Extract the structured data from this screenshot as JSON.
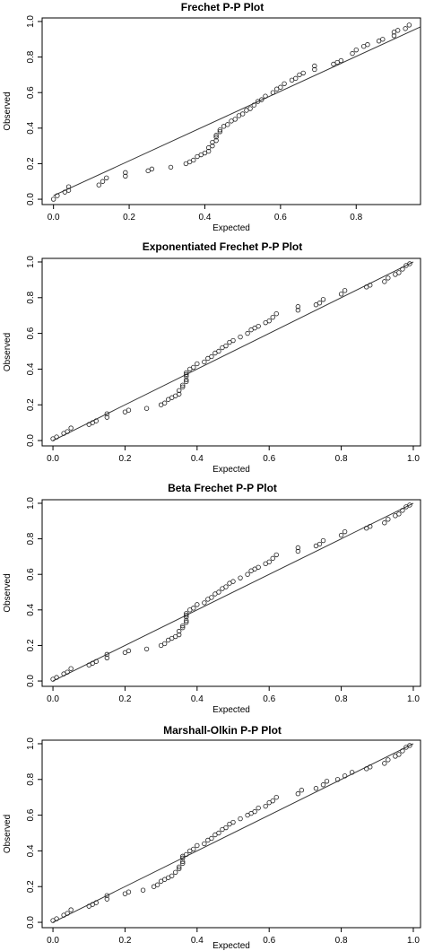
{
  "chart_data": [
    {
      "type": "scatter",
      "title": "Frechet P-P Plot",
      "xlabel": "Expected",
      "ylabel": "Observed",
      "xlim": [
        -0.03,
        0.97
      ],
      "ylim": [
        -0.03,
        1.02
      ],
      "x_ticks": [
        "0.0",
        "0.2",
        "0.4",
        "0.6",
        "0.8"
      ],
      "y_ticks": [
        "0.0",
        "0.2",
        "0.4",
        "0.6",
        "0.8",
        "1.0"
      ],
      "reference_line": {
        "from": [
          0,
          0.02
        ],
        "to": [
          0.97,
          0.97
        ]
      },
      "points": [
        [
          0.0,
          0.0
        ],
        [
          0.01,
          0.02
        ],
        [
          0.03,
          0.04
        ],
        [
          0.04,
          0.05
        ],
        [
          0.04,
          0.07
        ],
        [
          0.12,
          0.08
        ],
        [
          0.13,
          0.1
        ],
        [
          0.14,
          0.12
        ],
        [
          0.19,
          0.13
        ],
        [
          0.19,
          0.15
        ],
        [
          0.25,
          0.16
        ],
        [
          0.26,
          0.17
        ],
        [
          0.31,
          0.18
        ],
        [
          0.35,
          0.2
        ],
        [
          0.36,
          0.21
        ],
        [
          0.37,
          0.22
        ],
        [
          0.38,
          0.24
        ],
        [
          0.39,
          0.25
        ],
        [
          0.4,
          0.26
        ],
        [
          0.41,
          0.27
        ],
        [
          0.41,
          0.29
        ],
        [
          0.42,
          0.3
        ],
        [
          0.42,
          0.32
        ],
        [
          0.43,
          0.33
        ],
        [
          0.43,
          0.35
        ],
        [
          0.43,
          0.36
        ],
        [
          0.44,
          0.38
        ],
        [
          0.44,
          0.39
        ],
        [
          0.45,
          0.41
        ],
        [
          0.46,
          0.42
        ],
        [
          0.47,
          0.44
        ],
        [
          0.48,
          0.45
        ],
        [
          0.49,
          0.47
        ],
        [
          0.5,
          0.48
        ],
        [
          0.51,
          0.5
        ],
        [
          0.52,
          0.51
        ],
        [
          0.53,
          0.53
        ],
        [
          0.54,
          0.55
        ],
        [
          0.55,
          0.56
        ],
        [
          0.56,
          0.58
        ],
        [
          0.58,
          0.6
        ],
        [
          0.59,
          0.62
        ],
        [
          0.6,
          0.63
        ],
        [
          0.61,
          0.65
        ],
        [
          0.63,
          0.67
        ],
        [
          0.64,
          0.68
        ],
        [
          0.65,
          0.7
        ],
        [
          0.66,
          0.71
        ],
        [
          0.69,
          0.73
        ],
        [
          0.69,
          0.75
        ],
        [
          0.74,
          0.76
        ],
        [
          0.75,
          0.77
        ],
        [
          0.76,
          0.78
        ],
        [
          0.79,
          0.82
        ],
        [
          0.8,
          0.84
        ],
        [
          0.82,
          0.86
        ],
        [
          0.83,
          0.87
        ],
        [
          0.86,
          0.89
        ],
        [
          0.87,
          0.9
        ],
        [
          0.9,
          0.92
        ],
        [
          0.9,
          0.94
        ],
        [
          0.91,
          0.95
        ],
        [
          0.93,
          0.96
        ],
        [
          0.94,
          0.98
        ]
      ]
    },
    {
      "type": "scatter",
      "title": "Exponentiated Frechet P-P Plot",
      "xlabel": "Expected",
      "ylabel": "Observed",
      "xlim": [
        -0.03,
        1.02
      ],
      "ylim": [
        -0.03,
        1.02
      ],
      "x_ticks": [
        "0.0",
        "0.2",
        "0.4",
        "0.6",
        "0.8",
        "1.0"
      ],
      "y_ticks": [
        "0.0",
        "0.2",
        "0.4",
        "0.6",
        "0.8",
        "1.0"
      ],
      "reference_line": {
        "from": [
          0,
          0
        ],
        "to": [
          1,
          1
        ]
      },
      "points": [
        [
          0.0,
          0.01
        ],
        [
          0.01,
          0.02
        ],
        [
          0.03,
          0.04
        ],
        [
          0.04,
          0.05
        ],
        [
          0.05,
          0.07
        ],
        [
          0.1,
          0.09
        ],
        [
          0.11,
          0.1
        ],
        [
          0.12,
          0.11
        ],
        [
          0.15,
          0.13
        ],
        [
          0.15,
          0.15
        ],
        [
          0.2,
          0.16
        ],
        [
          0.21,
          0.17
        ],
        [
          0.26,
          0.18
        ],
        [
          0.3,
          0.2
        ],
        [
          0.31,
          0.21
        ],
        [
          0.32,
          0.23
        ],
        [
          0.33,
          0.24
        ],
        [
          0.34,
          0.25
        ],
        [
          0.35,
          0.26
        ],
        [
          0.35,
          0.28
        ],
        [
          0.36,
          0.3
        ],
        [
          0.36,
          0.31
        ],
        [
          0.37,
          0.33
        ],
        [
          0.37,
          0.34
        ],
        [
          0.37,
          0.36
        ],
        [
          0.37,
          0.37
        ],
        [
          0.37,
          0.38
        ],
        [
          0.38,
          0.4
        ],
        [
          0.39,
          0.41
        ],
        [
          0.4,
          0.43
        ],
        [
          0.42,
          0.44
        ],
        [
          0.43,
          0.46
        ],
        [
          0.44,
          0.47
        ],
        [
          0.45,
          0.49
        ],
        [
          0.46,
          0.5
        ],
        [
          0.47,
          0.52
        ],
        [
          0.48,
          0.53
        ],
        [
          0.49,
          0.55
        ],
        [
          0.5,
          0.56
        ],
        [
          0.52,
          0.58
        ],
        [
          0.54,
          0.6
        ],
        [
          0.55,
          0.62
        ],
        [
          0.56,
          0.63
        ],
        [
          0.57,
          0.64
        ],
        [
          0.59,
          0.66
        ],
        [
          0.6,
          0.67
        ],
        [
          0.61,
          0.69
        ],
        [
          0.62,
          0.71
        ],
        [
          0.68,
          0.73
        ],
        [
          0.68,
          0.75
        ],
        [
          0.73,
          0.76
        ],
        [
          0.74,
          0.77
        ],
        [
          0.75,
          0.79
        ],
        [
          0.8,
          0.82
        ],
        [
          0.81,
          0.84
        ],
        [
          0.87,
          0.86
        ],
        [
          0.88,
          0.87
        ],
        [
          0.92,
          0.89
        ],
        [
          0.93,
          0.91
        ],
        [
          0.95,
          0.93
        ],
        [
          0.96,
          0.94
        ],
        [
          0.97,
          0.96
        ],
        [
          0.98,
          0.98
        ],
        [
          0.99,
          0.99
        ]
      ]
    },
    {
      "type": "scatter",
      "title": "Beta Frechet P-P Plot",
      "xlabel": "Expected",
      "ylabel": "Observed",
      "xlim": [
        -0.03,
        1.02
      ],
      "ylim": [
        -0.03,
        1.02
      ],
      "x_ticks": [
        "0.0",
        "0.2",
        "0.4",
        "0.6",
        "0.8",
        "1.0"
      ],
      "y_ticks": [
        "0.0",
        "0.2",
        "0.4",
        "0.6",
        "0.8",
        "1.0"
      ],
      "reference_line": {
        "from": [
          0,
          0
        ],
        "to": [
          1,
          1
        ]
      },
      "points": [
        [
          0.0,
          0.01
        ],
        [
          0.01,
          0.02
        ],
        [
          0.03,
          0.04
        ],
        [
          0.04,
          0.05
        ],
        [
          0.05,
          0.07
        ],
        [
          0.1,
          0.09
        ],
        [
          0.11,
          0.1
        ],
        [
          0.12,
          0.11
        ],
        [
          0.15,
          0.13
        ],
        [
          0.15,
          0.15
        ],
        [
          0.2,
          0.16
        ],
        [
          0.21,
          0.17
        ],
        [
          0.26,
          0.18
        ],
        [
          0.3,
          0.2
        ],
        [
          0.31,
          0.21
        ],
        [
          0.32,
          0.23
        ],
        [
          0.33,
          0.24
        ],
        [
          0.34,
          0.25
        ],
        [
          0.35,
          0.26
        ],
        [
          0.35,
          0.28
        ],
        [
          0.36,
          0.3
        ],
        [
          0.36,
          0.31
        ],
        [
          0.37,
          0.33
        ],
        [
          0.37,
          0.34
        ],
        [
          0.37,
          0.36
        ],
        [
          0.37,
          0.37
        ],
        [
          0.37,
          0.38
        ],
        [
          0.38,
          0.4
        ],
        [
          0.39,
          0.41
        ],
        [
          0.4,
          0.43
        ],
        [
          0.42,
          0.44
        ],
        [
          0.43,
          0.46
        ],
        [
          0.44,
          0.47
        ],
        [
          0.45,
          0.49
        ],
        [
          0.46,
          0.5
        ],
        [
          0.47,
          0.52
        ],
        [
          0.48,
          0.53
        ],
        [
          0.49,
          0.55
        ],
        [
          0.5,
          0.56
        ],
        [
          0.52,
          0.58
        ],
        [
          0.54,
          0.6
        ],
        [
          0.55,
          0.62
        ],
        [
          0.56,
          0.63
        ],
        [
          0.57,
          0.64
        ],
        [
          0.59,
          0.66
        ],
        [
          0.6,
          0.67
        ],
        [
          0.61,
          0.69
        ],
        [
          0.62,
          0.71
        ],
        [
          0.68,
          0.73
        ],
        [
          0.68,
          0.75
        ],
        [
          0.73,
          0.76
        ],
        [
          0.74,
          0.77
        ],
        [
          0.75,
          0.79
        ],
        [
          0.8,
          0.82
        ],
        [
          0.81,
          0.84
        ],
        [
          0.87,
          0.86
        ],
        [
          0.88,
          0.87
        ],
        [
          0.92,
          0.89
        ],
        [
          0.93,
          0.91
        ],
        [
          0.95,
          0.93
        ],
        [
          0.96,
          0.94
        ],
        [
          0.97,
          0.96
        ],
        [
          0.98,
          0.98
        ],
        [
          0.99,
          0.99
        ]
      ]
    },
    {
      "type": "scatter",
      "title": "Marshall-Olkin  P-P Plot",
      "xlabel": "Expected",
      "ylabel": "Observed",
      "xlim": [
        -0.03,
        1.02
      ],
      "ylim": [
        -0.03,
        1.02
      ],
      "x_ticks": [
        "0.0",
        "0.2",
        "0.4",
        "0.6",
        "0.8",
        "1.0"
      ],
      "y_ticks": [
        "0.0",
        "0.2",
        "0.4",
        "0.6",
        "0.8",
        "1.0"
      ],
      "reference_line": {
        "from": [
          0,
          0
        ],
        "to": [
          1,
          1
        ]
      },
      "points": [
        [
          0.0,
          0.01
        ],
        [
          0.01,
          0.02
        ],
        [
          0.03,
          0.04
        ],
        [
          0.04,
          0.05
        ],
        [
          0.05,
          0.07
        ],
        [
          0.1,
          0.09
        ],
        [
          0.11,
          0.1
        ],
        [
          0.12,
          0.11
        ],
        [
          0.15,
          0.13
        ],
        [
          0.15,
          0.15
        ],
        [
          0.2,
          0.16
        ],
        [
          0.21,
          0.17
        ],
        [
          0.25,
          0.18
        ],
        [
          0.28,
          0.2
        ],
        [
          0.29,
          0.21
        ],
        [
          0.3,
          0.23
        ],
        [
          0.31,
          0.24
        ],
        [
          0.32,
          0.25
        ],
        [
          0.33,
          0.26
        ],
        [
          0.34,
          0.28
        ],
        [
          0.35,
          0.3
        ],
        [
          0.35,
          0.31
        ],
        [
          0.36,
          0.33
        ],
        [
          0.36,
          0.34
        ],
        [
          0.36,
          0.36
        ],
        [
          0.36,
          0.37
        ],
        [
          0.37,
          0.38
        ],
        [
          0.38,
          0.4
        ],
        [
          0.39,
          0.41
        ],
        [
          0.4,
          0.43
        ],
        [
          0.42,
          0.44
        ],
        [
          0.43,
          0.46
        ],
        [
          0.44,
          0.47
        ],
        [
          0.45,
          0.49
        ],
        [
          0.46,
          0.5
        ],
        [
          0.47,
          0.52
        ],
        [
          0.48,
          0.53
        ],
        [
          0.49,
          0.55
        ],
        [
          0.5,
          0.56
        ],
        [
          0.52,
          0.58
        ],
        [
          0.54,
          0.6
        ],
        [
          0.55,
          0.61
        ],
        [
          0.56,
          0.62
        ],
        [
          0.57,
          0.64
        ],
        [
          0.59,
          0.65
        ],
        [
          0.6,
          0.67
        ],
        [
          0.61,
          0.68
        ],
        [
          0.62,
          0.7
        ],
        [
          0.68,
          0.72
        ],
        [
          0.69,
          0.74
        ],
        [
          0.73,
          0.75
        ],
        [
          0.75,
          0.77
        ],
        [
          0.76,
          0.79
        ],
        [
          0.79,
          0.8
        ],
        [
          0.81,
          0.82
        ],
        [
          0.83,
          0.84
        ],
        [
          0.87,
          0.86
        ],
        [
          0.88,
          0.87
        ],
        [
          0.92,
          0.89
        ],
        [
          0.93,
          0.91
        ],
        [
          0.95,
          0.93
        ],
        [
          0.96,
          0.94
        ],
        [
          0.97,
          0.96
        ],
        [
          0.98,
          0.98
        ],
        [
          0.99,
          0.99
        ]
      ]
    }
  ]
}
